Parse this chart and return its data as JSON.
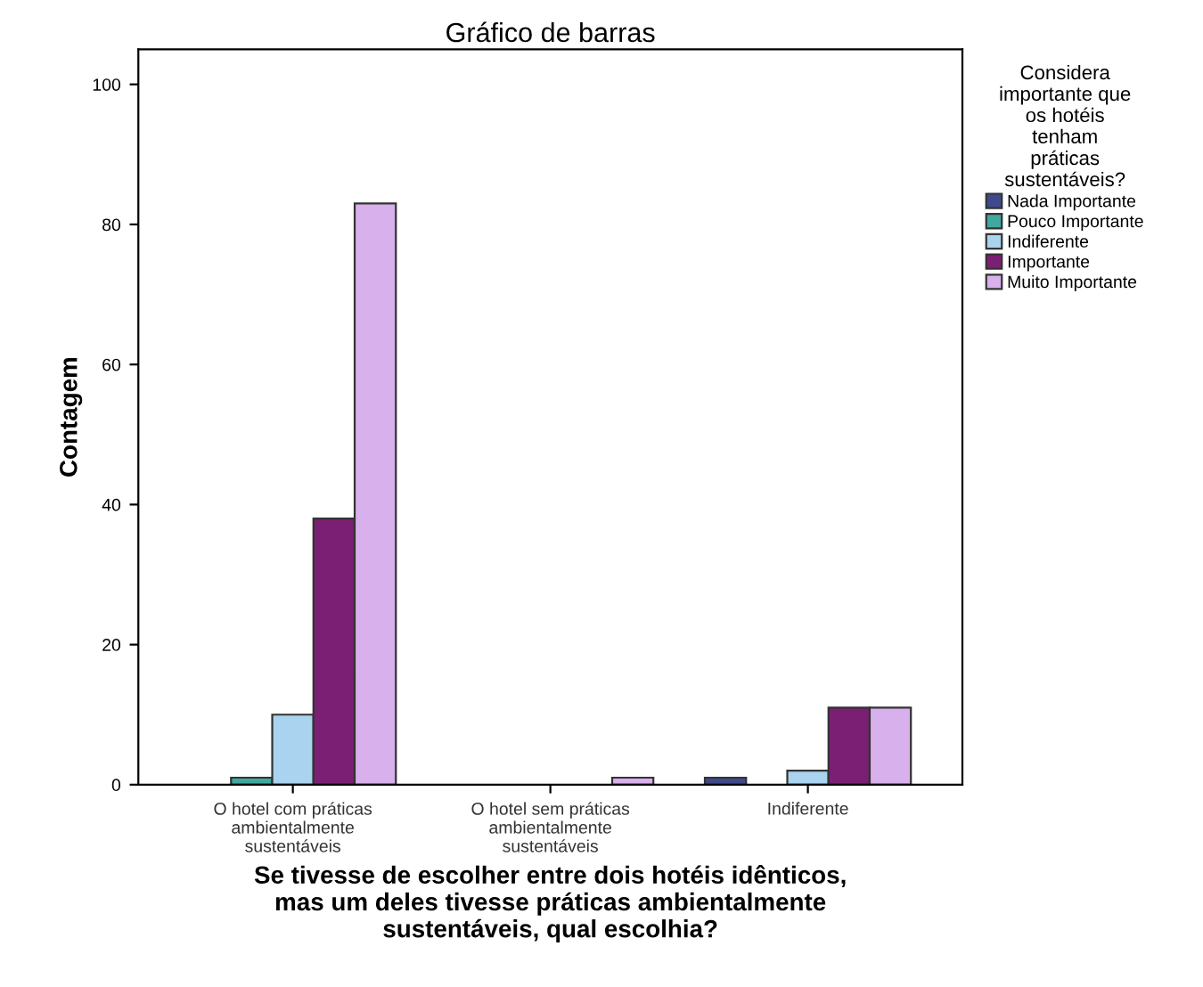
{
  "chart_data": {
    "type": "bar",
    "title": "Gráfico de barras",
    "xlabel": "Se tivesse de escolher entre dois hotéis idênticos,\nmas um deles tivesse práticas ambientalmente\nsustentáveis, qual escolhia?",
    "ylabel": "Contagem",
    "legend_title": "Considera\nimportante que\nos hotéis\ntenham\npráticas\nsustentáveis?",
    "categories": [
      "O hotel com práticas\nambientalmente\nsustentáveis",
      "O hotel sem práticas\nambientalmente\nsustentáveis",
      "Indiferente"
    ],
    "series": [
      {
        "name": "Nada Importante",
        "color": "#3e4a8c",
        "values": [
          null,
          null,
          1
        ]
      },
      {
        "name": "Pouco Importante",
        "color": "#3fa9a0",
        "values": [
          1,
          null,
          null
        ]
      },
      {
        "name": "Indiferente",
        "color": "#a9d3ee",
        "values": [
          10,
          null,
          2
        ]
      },
      {
        "name": "Importante",
        "color": "#7b1f74",
        "values": [
          38,
          null,
          11
        ]
      },
      {
        "name": "Muito Importante",
        "color": "#d8b0ec",
        "values": [
          83,
          1,
          11
        ]
      }
    ],
    "ylim": [
      0,
      105
    ],
    "yticks": [
      0,
      20,
      40,
      60,
      80,
      100
    ],
    "grid": false,
    "legend": "right"
  }
}
